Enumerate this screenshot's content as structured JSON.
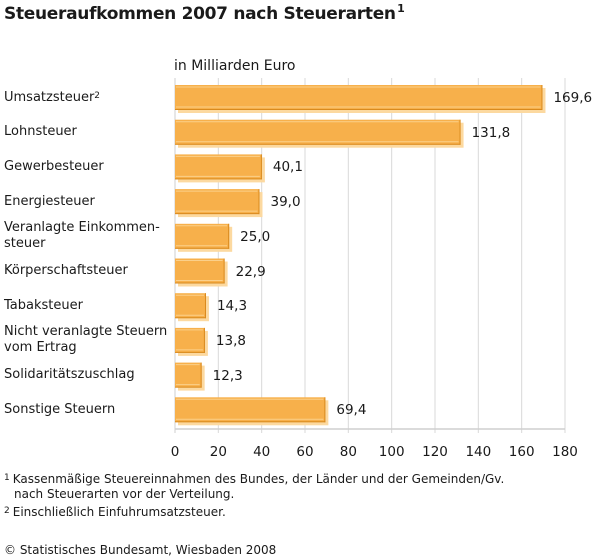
{
  "chart_data": {
    "type": "bar",
    "orientation": "horizontal",
    "title": "Steueraufkommen 2007 nach Steuerarten",
    "title_footnote_mark": "1",
    "unit_label": "in Milliarden Euro",
    "xlabel": "",
    "ylabel": "",
    "xlim": [
      0,
      180
    ],
    "xticks": [
      0,
      20,
      40,
      60,
      80,
      100,
      120,
      140,
      160,
      180
    ],
    "xtick_labels": [
      "0",
      "20",
      "40",
      "60",
      "80",
      "100",
      "120",
      "140",
      "160",
      "180"
    ],
    "grid": "vertical",
    "bar_color": "#f7b04b",
    "categories": [
      {
        "label": "Umsatzsteuer",
        "footnote_mark": "2"
      },
      {
        "label": "Lohnsteuer",
        "footnote_mark": ""
      },
      {
        "label": "Gewerbesteuer",
        "footnote_mark": ""
      },
      {
        "label": "Energiesteuer",
        "footnote_mark": ""
      },
      {
        "label": "Veranlagte Einkommen-\nsteuer",
        "footnote_mark": ""
      },
      {
        "label": "Körperschaftsteuer",
        "footnote_mark": ""
      },
      {
        "label": "Tabaksteuer",
        "footnote_mark": ""
      },
      {
        "label": "Nicht veranlagte Steuern\nvom Ertrag",
        "footnote_mark": ""
      },
      {
        "label": "Solidaritätszuschlag",
        "footnote_mark": ""
      },
      {
        "label": "Sonstige Steuern",
        "footnote_mark": ""
      }
    ],
    "values": [
      169.6,
      131.8,
      40.1,
      39.0,
      25.0,
      22.9,
      14.3,
      13.8,
      12.3,
      69.4
    ],
    "value_labels": [
      "169,6",
      "131,8",
      "40,1",
      "39,0",
      "25,0",
      "22,9",
      "14,3",
      "13,8",
      "12,3",
      "69,4"
    ]
  },
  "footnotes": [
    {
      "mark": "1",
      "lines": [
        "Kassenmäßige Steuereinnahmen des Bundes, der Länder und der Gemeinden/Gv.",
        "nach Steuerarten vor der Verteilung."
      ]
    },
    {
      "mark": "2",
      "lines": [
        "Einschließlich Einfuhrumsatzsteuer."
      ]
    }
  ],
  "copyright": "© Statistisches Bundesamt, Wiesbaden 2008"
}
